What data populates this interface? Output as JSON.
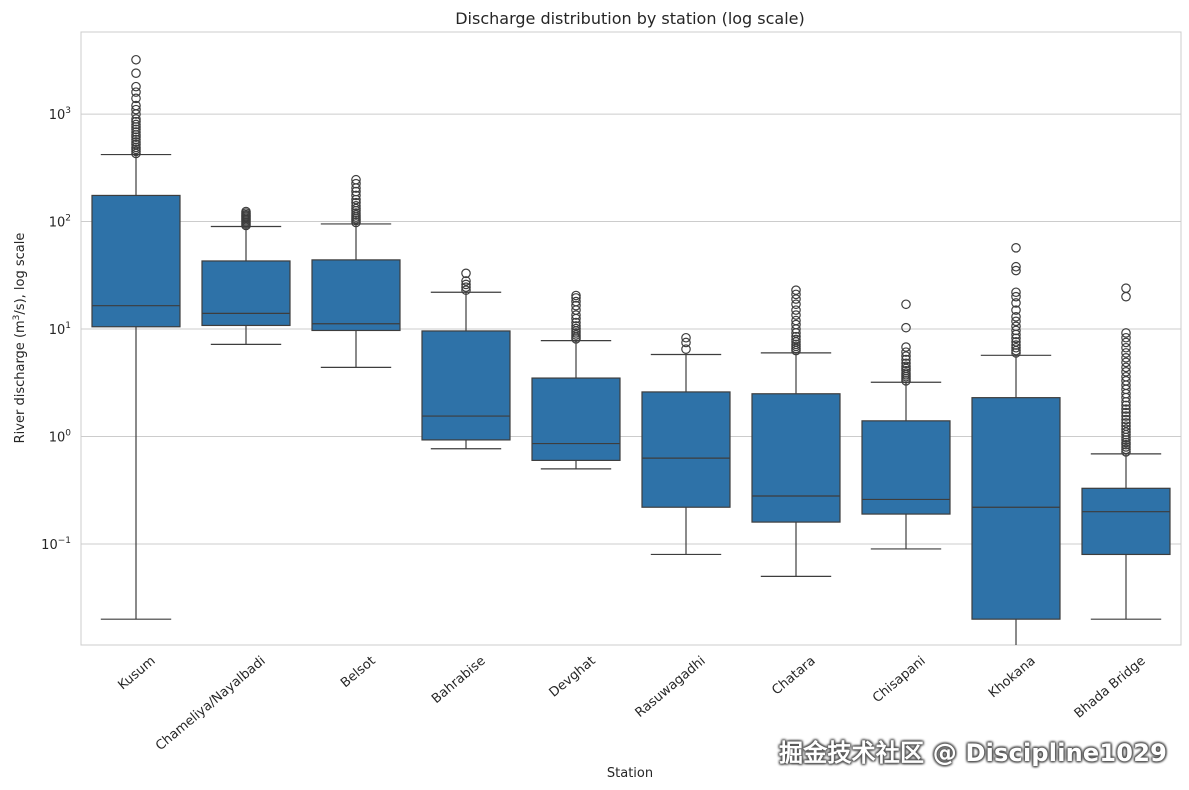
{
  "chart_data": {
    "type": "box",
    "title": "Discharge distribution by station (log scale)",
    "xlabel": "Station",
    "ylabel_prefix": "River discharge (m",
    "ylabel_sup": "3",
    "ylabel_suffix": "/s), log scale",
    "yscale": "log",
    "ylim": [
      0.0115,
      5800
    ],
    "grid": true,
    "y_ticks": [
      {
        "value": 0.1,
        "base": "10",
        "exp": "−1"
      },
      {
        "value": 1,
        "base": "10",
        "exp": "0"
      },
      {
        "value": 10,
        "base": "10",
        "exp": "1"
      },
      {
        "value": 100,
        "base": "10",
        "exp": "2"
      },
      {
        "value": 1000,
        "base": "10",
        "exp": "3"
      }
    ],
    "color": "#2e72a8",
    "edge_color": "#3d3d3d",
    "categories": [
      "Kusum",
      "Chameliya/Nayalbadi",
      "Belsot",
      "Bahrabise",
      "Devghat",
      "Rasuwagadhi",
      "Chatara",
      "Chisapani",
      "Khokana",
      "Bhada Bridge"
    ],
    "boxes": [
      {
        "whislo": 0.02,
        "q1": 10.5,
        "med": 16.5,
        "q3": 175,
        "whishi": 420,
        "fliers": [
          430,
          450,
          470,
          490,
          520,
          550,
          580,
          610,
          640,
          680,
          720,
          760,
          800,
          850,
          900,
          1000,
          1100,
          1200,
          1400,
          1600,
          1800,
          2400,
          3200
        ]
      },
      {
        "whislo": 7.2,
        "q1": 10.8,
        "med": 14,
        "q3": 43,
        "whishi": 90,
        "fliers": [
          92,
          95,
          98,
          101,
          104,
          107,
          110,
          113,
          116,
          120,
          124
        ]
      },
      {
        "whislo": 4.4,
        "q1": 9.7,
        "med": 11.2,
        "q3": 44,
        "whishi": 95,
        "fliers": [
          98,
          102,
          106,
          110,
          115,
          120,
          126,
          132,
          140,
          150,
          160,
          175,
          190,
          205,
          225,
          245
        ]
      },
      {
        "whislo": 0.77,
        "q1": 0.93,
        "med": 1.55,
        "q3": 9.6,
        "whishi": 22,
        "fliers": [
          23,
          24.5,
          26,
          28,
          33
        ]
      },
      {
        "whislo": 0.5,
        "q1": 0.6,
        "med": 0.86,
        "q3": 3.5,
        "whishi": 7.8,
        "fliers": [
          8.1,
          8.4,
          8.8,
          9.2,
          9.6,
          10.1,
          10.7,
          11.5,
          12.5,
          13.5,
          15,
          16.5,
          18,
          19.5,
          20.5
        ]
      },
      {
        "whislo": 0.08,
        "q1": 0.22,
        "med": 0.63,
        "q3": 2.6,
        "whishi": 5.8,
        "fliers": [
          6.5,
          7.5,
          8.3
        ]
      },
      {
        "whislo": 0.05,
        "q1": 0.16,
        "med": 0.28,
        "q3": 2.5,
        "whishi": 6.0,
        "fliers": [
          6.3,
          6.6,
          6.9,
          7.2,
          7.6,
          8.0,
          8.5,
          9.2,
          10,
          11,
          12,
          13.5,
          15,
          17,
          19,
          21,
          23
        ]
      },
      {
        "whislo": 0.09,
        "q1": 0.19,
        "med": 0.26,
        "q3": 1.4,
        "whishi": 3.2,
        "fliers": [
          3.3,
          3.45,
          3.6,
          3.75,
          3.9,
          4.1,
          4.3,
          4.5,
          4.8,
          5.2,
          5.6,
          6.1,
          6.8,
          10.3,
          17
        ]
      },
      {
        "whislo": 0.0062,
        "q1": 0.02,
        "med": 0.22,
        "q3": 2.3,
        "whishi": 5.7,
        "fliers": [
          6.0,
          6.3,
          6.7,
          7.1,
          7.6,
          8.2,
          8.9,
          9.7,
          10.6,
          11.8,
          13,
          15,
          17.5,
          20,
          22,
          35,
          38,
          57
        ]
      },
      {
        "whislo": 0.02,
        "q1": 0.08,
        "med": 0.2,
        "q3": 0.33,
        "whishi": 0.69,
        "fliers": [
          0.72,
          0.76,
          0.8,
          0.84,
          0.88,
          0.93,
          0.98,
          1.04,
          1.1,
          1.17,
          1.25,
          1.34,
          1.44,
          1.55,
          1.67,
          1.8,
          1.95,
          2.1,
          2.3,
          2.5,
          2.75,
          3.0,
          3.3,
          3.6,
          4.0,
          4.4,
          4.9,
          5.4,
          6.0,
          6.7,
          7.5,
          8.3,
          9.2,
          20,
          24
        ]
      }
    ]
  },
  "watermark": "掘金技术社区 @ Discipline1029"
}
